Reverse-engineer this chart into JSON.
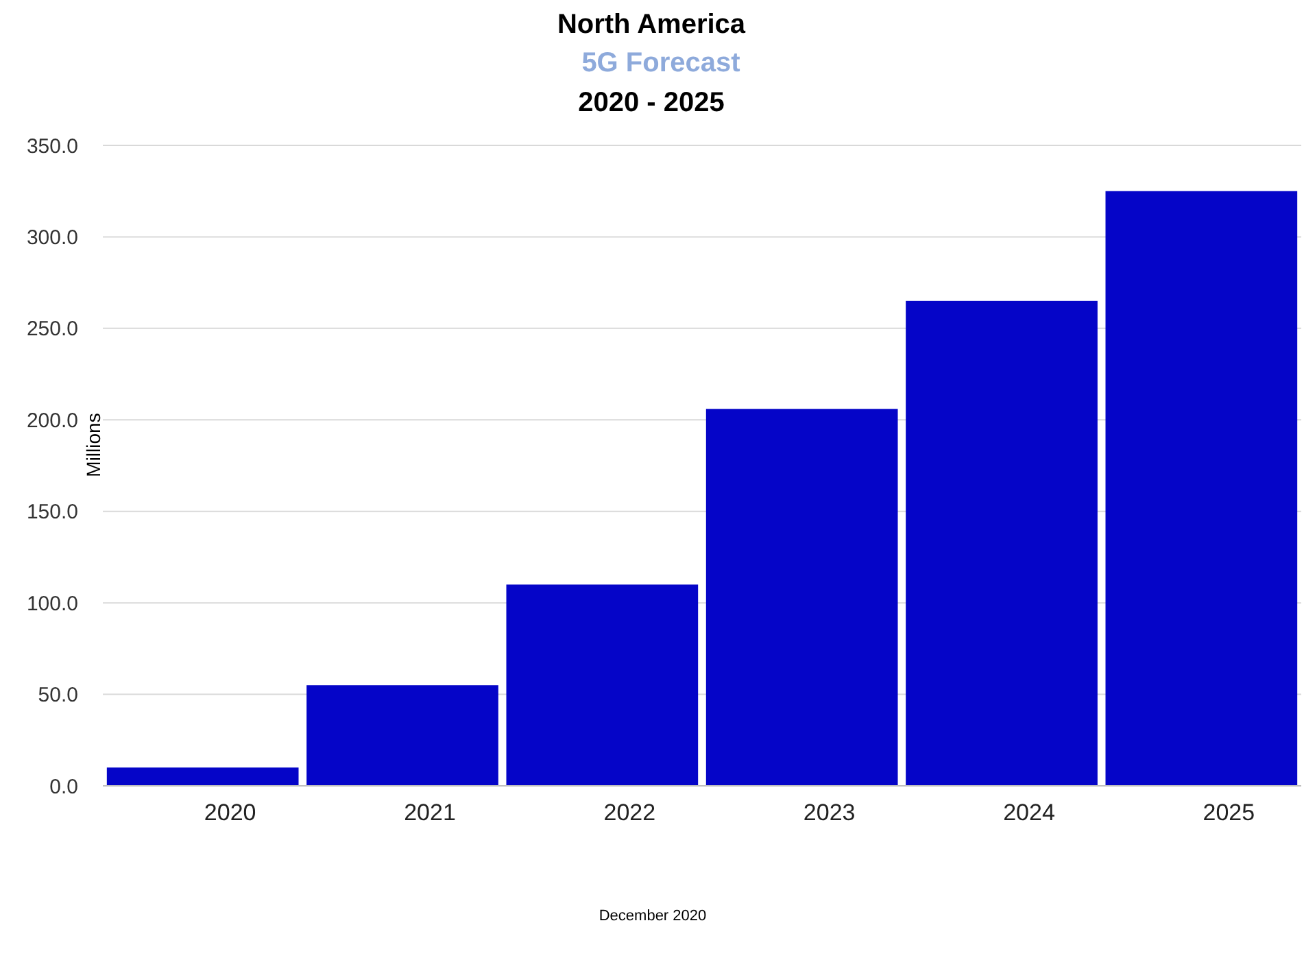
{
  "chart_data": {
    "type": "bar",
    "title": "North America",
    "subtitle": "5G Forecast",
    "annotations": [
      "2020 - 2025",
      "December 2020"
    ],
    "ylabel": "Millions",
    "categories": [
      "2020",
      "2021",
      "2022",
      "2023",
      "2024",
      "2025"
    ],
    "values": [
      10,
      55,
      110,
      206,
      265,
      325
    ],
    "color": "#0505c8",
    "ylim": [
      0,
      350
    ],
    "yticks": [
      {
        "value": 0,
        "label": "0.0"
      },
      {
        "value": 50,
        "label": "50.0"
      },
      {
        "value": 100,
        "label": "100.0"
      },
      {
        "value": 150,
        "label": "150.0"
      },
      {
        "value": 200,
        "label": "200.0"
      },
      {
        "value": 250,
        "label": "250.0"
      },
      {
        "value": 300,
        "label": "300.0"
      },
      {
        "value": 350,
        "label": "350.0"
      }
    ],
    "grid": "y"
  }
}
